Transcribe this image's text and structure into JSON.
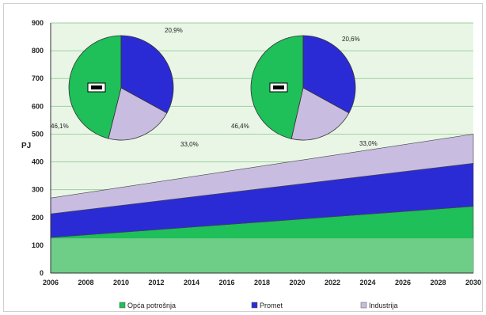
{
  "chart_data": {
    "type": "area",
    "stacked": true,
    "xlabel": "",
    "ylabel": "PJ",
    "ylim": [
      0,
      900
    ],
    "yticks": [
      0,
      100,
      200,
      300,
      400,
      500,
      600,
      700,
      800,
      900
    ],
    "x": [
      2006,
      2030
    ],
    "xticks": [
      "2006",
      "2008",
      "2010",
      "2012",
      "2014",
      "2016",
      "2018",
      "2020",
      "2022",
      "2024",
      "2026",
      "2028",
      "2030"
    ],
    "grid": true,
    "legend_position": "bottom",
    "series": [
      {
        "name": "Opća potrošnja",
        "values": [
          128,
          240
        ],
        "color": "#1fbf5a"
      },
      {
        "name": "Promet",
        "values": [
          85,
          155
        ],
        "color": "#2b2bd6"
      },
      {
        "name": "Industrija",
        "values": [
          57,
          105
        ],
        "color": "#c8bde0"
      }
    ],
    "baseline_band": {
      "value": 125,
      "color": "#7ccf8f"
    },
    "pies": [
      {
        "year_label": "",
        "slices": [
          {
            "series": "Opća potrošnja",
            "value": 46.1,
            "label": "46,1%"
          },
          {
            "series": "Promet",
            "value": 33.0,
            "label": "33,0%"
          },
          {
            "series": "Industrija",
            "value": 20.9,
            "label": "20,9%"
          }
        ]
      },
      {
        "year_label": "",
        "slices": [
          {
            "series": "Opća potrošnja",
            "value": 46.4,
            "label": "46,4%"
          },
          {
            "series": "Promet",
            "value": 33.0,
            "label": "33,0%"
          },
          {
            "series": "Industrija",
            "value": 20.6,
            "label": "20,6%"
          }
        ]
      }
    ]
  },
  "legend": {
    "items": [
      {
        "label": "Opća potrošnja",
        "color": "#1fbf5a"
      },
      {
        "label": "Promet",
        "color": "#2b2bd6"
      },
      {
        "label": "Industrija",
        "color": "#c8bde0"
      }
    ]
  },
  "colors": {
    "plot_background": "#e9f6e6",
    "gridline": "#9fd09f"
  }
}
